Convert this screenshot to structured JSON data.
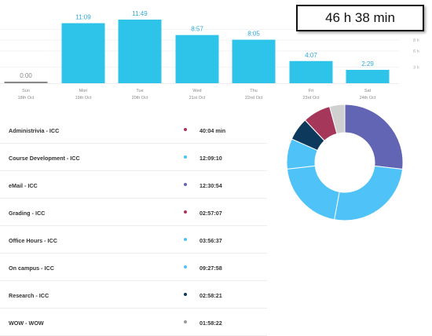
{
  "total": {
    "label": "46 h 38 min"
  },
  "chart_data": {
    "type": "bar",
    "categories": [
      "Sun",
      "Mon",
      "Tue",
      "Wed",
      "Thu",
      "Fri",
      "Sat"
    ],
    "dates": [
      "18th Oct",
      "19th Oct",
      "20th Oct",
      "21st Oct",
      "22nd Oct",
      "23rd Oct",
      "24th Oct"
    ],
    "values": [
      0.0,
      11.15,
      11.8167,
      8.95,
      8.0833,
      4.1167,
      2.4833
    ],
    "value_labels": [
      "0:00",
      "11:09",
      "11:49",
      "8:57",
      "8:05",
      "4:07",
      "2:29"
    ],
    "y_ticks": [
      "10 h",
      "8 h",
      "6 h",
      "3 h"
    ],
    "y_tick_values": [
      10,
      8,
      6,
      3
    ],
    "ylim": [
      0,
      14
    ],
    "bar_color": "#2ec4ea",
    "zero_bar_color": "#888888",
    "label_color": "#2ea8d8"
  },
  "activities": [
    {
      "name": "Administrivia - ICC",
      "time": "40:04 min",
      "color": "#a5375a"
    },
    {
      "name": "Course Development - ICC",
      "time": "12:09:10",
      "color": "#4fc3f7"
    },
    {
      "name": "eMail - ICC",
      "time": "12:30:54",
      "color": "#6264b4"
    },
    {
      "name": "Grading - ICC",
      "time": "02:57:07",
      "color": "#a5375a"
    },
    {
      "name": "Office Hours - ICC",
      "time": "03:56:37",
      "color": "#4fc3f7"
    },
    {
      "name": "On campus - ICC",
      "time": "09:27:58",
      "color": "#4fc3f7"
    },
    {
      "name": "Research - ICC",
      "time": "02:58:21",
      "color": "#0d3a5c"
    },
    {
      "name": "WOW - WOW",
      "time": "01:58:22",
      "color": "#999999"
    }
  ],
  "donut_data": {
    "type": "pie",
    "slices": [
      {
        "value": 12.52,
        "color": "#6264b4"
      },
      {
        "value": 12.15,
        "color": "#4fc3f7"
      },
      {
        "value": 9.47,
        "color": "#4fc3f7"
      },
      {
        "value": 3.94,
        "color": "#4fc3f7"
      },
      {
        "value": 2.97,
        "color": "#0d3a5c"
      },
      {
        "value": 3.62,
        "color": "#a5375a"
      },
      {
        "value": 1.97,
        "color": "#d0d0d0"
      }
    ]
  }
}
